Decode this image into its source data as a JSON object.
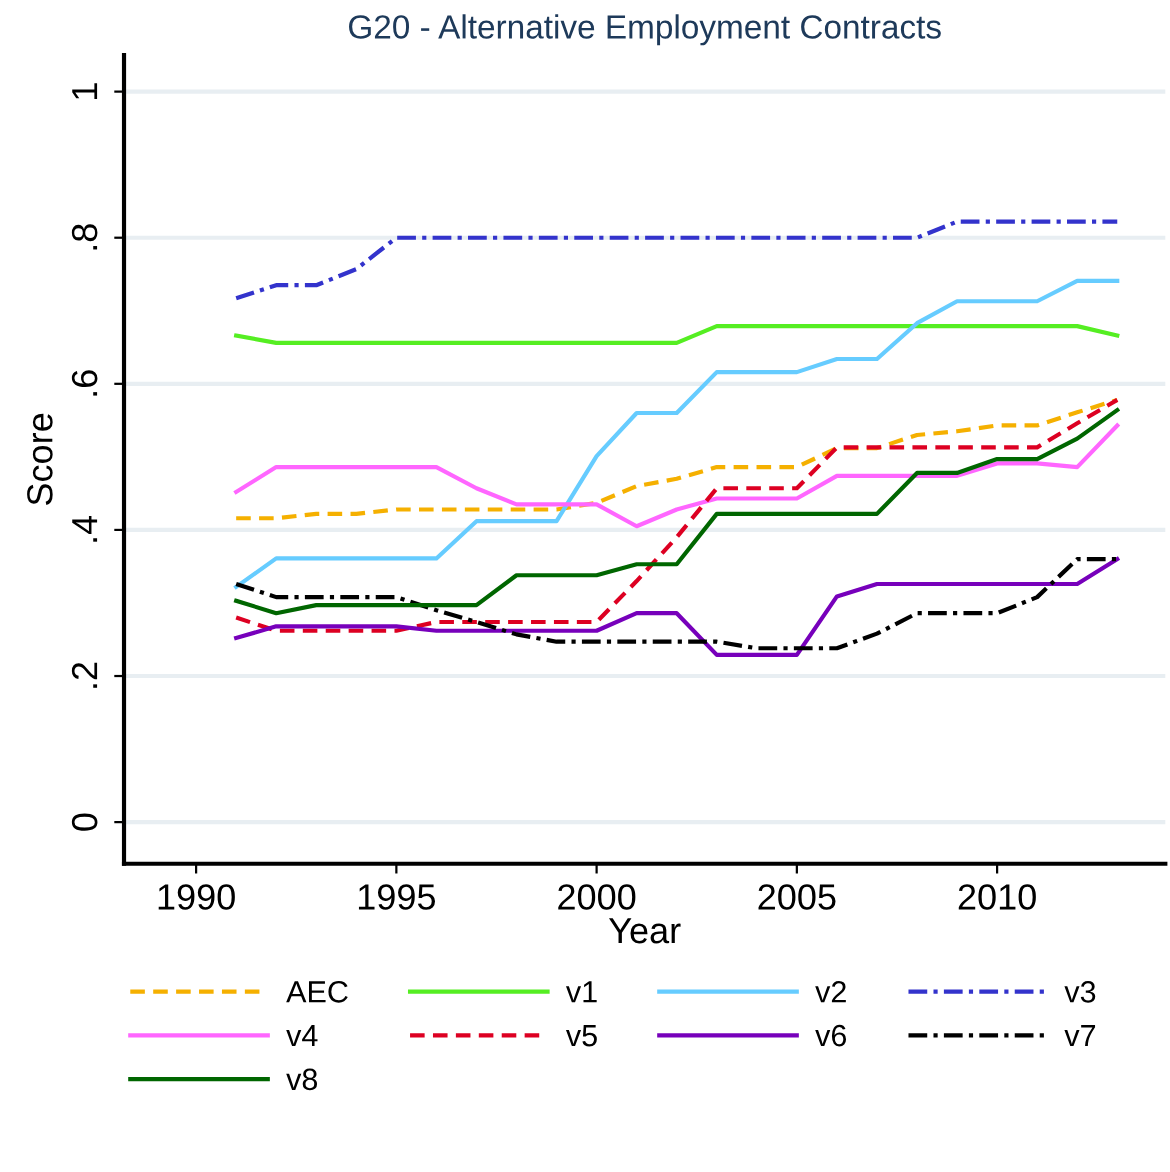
{
  "chart_data": {
    "type": "line",
    "title": "G20 - Alternative Employment Contracts",
    "xlabel": "Year",
    "ylabel": "Score",
    "x": [
      1991,
      1992,
      1993,
      1994,
      1995,
      1996,
      1997,
      1998,
      1999,
      2000,
      2001,
      2002,
      2003,
      2004,
      2005,
      2006,
      2007,
      2008,
      2009,
      2010,
      2011,
      2012,
      2013
    ],
    "series": [
      {
        "name": "AEC",
        "color": "#f5b000",
        "line_style": "dashed",
        "values": [
          0.416,
          0.416,
          0.422,
          0.422,
          0.428,
          0.428,
          0.428,
          0.428,
          0.428,
          0.437,
          0.46,
          0.47,
          0.486,
          0.486,
          0.486,
          0.512,
          0.512,
          0.53,
          0.535,
          0.543,
          0.543,
          0.561,
          0.578
        ]
      },
      {
        "name": "v1",
        "color": "#55ee22",
        "line_style": "solid",
        "values": [
          0.666,
          0.656,
          0.656,
          0.656,
          0.656,
          0.656,
          0.656,
          0.656,
          0.656,
          0.656,
          0.656,
          0.656,
          0.679,
          0.679,
          0.679,
          0.679,
          0.679,
          0.679,
          0.679,
          0.679,
          0.679,
          0.679,
          0.666
        ]
      },
      {
        "name": "v2",
        "color": "#66ccff",
        "line_style": "solid",
        "values": [
          0.322,
          0.361,
          0.361,
          0.361,
          0.361,
          0.361,
          0.412,
          0.412,
          0.412,
          0.501,
          0.56,
          0.56,
          0.616,
          0.616,
          0.616,
          0.634,
          0.634,
          0.683,
          0.713,
          0.713,
          0.713,
          0.741,
          0.741
        ]
      },
      {
        "name": "v3",
        "color": "#3333cc",
        "line_style": "dashdot",
        "values": [
          0.717,
          0.735,
          0.735,
          0.757,
          0.8,
          0.8,
          0.8,
          0.8,
          0.8,
          0.8,
          0.8,
          0.8,
          0.8,
          0.8,
          0.8,
          0.8,
          0.8,
          0.8,
          0.822,
          0.822,
          0.822,
          0.822,
          0.822
        ]
      },
      {
        "name": "v4",
        "color": "#ff66ff",
        "line_style": "solid",
        "values": [
          0.452,
          0.486,
          0.486,
          0.486,
          0.486,
          0.486,
          0.457,
          0.435,
          0.435,
          0.435,
          0.405,
          0.428,
          0.443,
          0.443,
          0.443,
          0.474,
          0.474,
          0.474,
          0.474,
          0.491,
          0.491,
          0.486,
          0.543
        ]
      },
      {
        "name": "v5",
        "color": "#dd0022",
        "line_style": "dashed",
        "values": [
          0.28,
          0.262,
          0.262,
          0.262,
          0.262,
          0.274,
          0.274,
          0.274,
          0.274,
          0.274,
          0.33,
          0.39,
          0.457,
          0.457,
          0.457,
          0.513,
          0.513,
          0.513,
          0.513,
          0.513,
          0.513,
          0.546,
          0.578
        ]
      },
      {
        "name": "v6",
        "color": "#7700bb",
        "line_style": "solid",
        "values": [
          0.252,
          0.268,
          0.268,
          0.268,
          0.268,
          0.262,
          0.262,
          0.262,
          0.262,
          0.262,
          0.286,
          0.286,
          0.229,
          0.229,
          0.229,
          0.309,
          0.326,
          0.326,
          0.326,
          0.326,
          0.326,
          0.326,
          0.36
        ]
      },
      {
        "name": "v7",
        "color": "#000000",
        "line_style": "dashdot",
        "values": [
          0.326,
          0.308,
          0.308,
          0.308,
          0.308,
          0.29,
          0.274,
          0.257,
          0.247,
          0.247,
          0.247,
          0.247,
          0.247,
          0.238,
          0.238,
          0.238,
          0.258,
          0.286,
          0.286,
          0.286,
          0.308,
          0.36,
          0.36
        ]
      },
      {
        "name": "v8",
        "color": "#006600",
        "line_style": "solid",
        "values": [
          0.303,
          0.286,
          0.297,
          0.297,
          0.297,
          0.297,
          0.297,
          0.338,
          0.338,
          0.338,
          0.353,
          0.353,
          0.422,
          0.422,
          0.422,
          0.422,
          0.422,
          0.478,
          0.478,
          0.497,
          0.497,
          0.525,
          0.564
        ]
      }
    ],
    "xlim": [
      1988.2,
      2014.2
    ],
    "xticks": [
      1990,
      1995,
      2000,
      2005,
      2010
    ],
    "ylim": [
      -0.057,
      1.05
    ],
    "yticks": [
      0,
      {
        "value": 0.2,
        "label": ".2"
      },
      {
        "value": 0.4,
        "label": ".4"
      },
      {
        "value": 0.6,
        "label": ".6"
      },
      {
        "value": 0.8,
        "label": ".8"
      },
      1
    ],
    "grid": "y",
    "legend": "bottom"
  }
}
